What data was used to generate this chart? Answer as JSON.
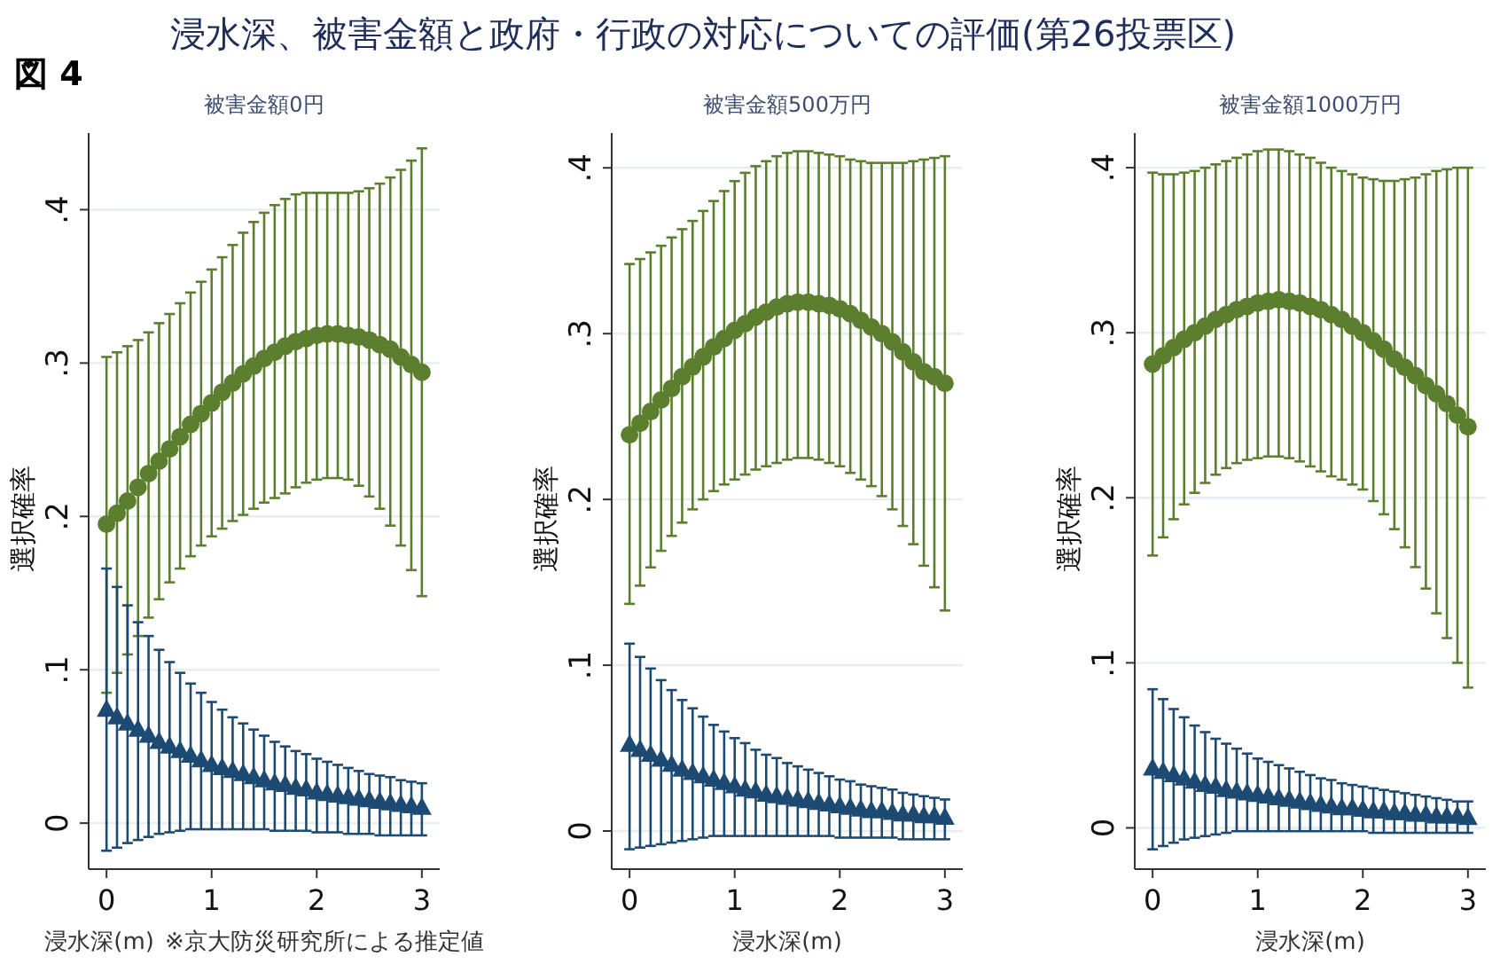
{
  "chart_data": [
    {
      "type": "scatter",
      "title": "浸水深、被害金額と政府・行政の対応についての評価(第26投票区)",
      "subtitle": "被害金額0円",
      "xlabel": "浸水深(m)",
      "ylabel": "選択確率",
      "annotations": [
        "図 4",
        "※京大防災研究所による推定値"
      ],
      "grid": "y",
      "xlim": [
        -0.17,
        3.17
      ],
      "ylim": [
        -0.03,
        0.45
      ],
      "xticks": [
        0,
        1,
        2,
        3
      ],
      "yticks": [
        {
          "value": 0,
          "label": "0"
        },
        {
          "value": 0.1,
          "label": ".1"
        },
        {
          "value": 0.2,
          "label": ".2"
        },
        {
          "value": 0.3,
          "label": ".3"
        },
        {
          "value": 0.4,
          "label": ".4"
        }
      ],
      "x": [
        0,
        0.1,
        0.2,
        0.3,
        0.4,
        0.5,
        0.6,
        0.7,
        0.8,
        0.9,
        1,
        1.1,
        1.2,
        1.3,
        1.4,
        1.5,
        1.6,
        1.7,
        1.8,
        1.9,
        2,
        2.1,
        2.2,
        2.3,
        2.4,
        2.5,
        2.6,
        2.7,
        2.8,
        2.9,
        3
      ],
      "series": [
        {
          "color": "#5b7f2f",
          "marker": "circle",
          "values": [
            0.195,
            0.202,
            0.21,
            0.219,
            0.228,
            0.236,
            0.244,
            0.252,
            0.26,
            0.267,
            0.274,
            0.281,
            0.287,
            0.293,
            0.298,
            0.303,
            0.307,
            0.311,
            0.314,
            0.316,
            0.318,
            0.319,
            0.319,
            0.318,
            0.317,
            0.315,
            0.312,
            0.309,
            0.304,
            0.299,
            0.294
          ],
          "errors": [
            [
              0.085,
              0.304
            ],
            [
              0.098,
              0.307
            ],
            [
              0.11,
              0.311
            ],
            [
              0.122,
              0.315
            ],
            [
              0.134,
              0.32
            ],
            [
              0.146,
              0.326
            ],
            [
              0.157,
              0.332
            ],
            [
              0.166,
              0.339
            ],
            [
              0.174,
              0.346
            ],
            [
              0.181,
              0.353
            ],
            [
              0.187,
              0.361
            ],
            [
              0.192,
              0.369
            ],
            [
              0.197,
              0.377
            ],
            [
              0.201,
              0.385
            ],
            [
              0.205,
              0.392
            ],
            [
              0.209,
              0.398
            ],
            [
              0.212,
              0.403
            ],
            [
              0.215,
              0.407
            ],
            [
              0.219,
              0.41
            ],
            [
              0.222,
              0.411
            ],
            [
              0.224,
              0.411
            ],
            [
              0.225,
              0.411
            ],
            [
              0.225,
              0.411
            ],
            [
              0.224,
              0.411
            ],
            [
              0.22,
              0.412
            ],
            [
              0.213,
              0.414
            ],
            [
              0.205,
              0.417
            ],
            [
              0.194,
              0.421
            ],
            [
              0.181,
              0.426
            ],
            [
              0.165,
              0.432
            ],
            [
              0.148,
              0.44
            ]
          ]
        },
        {
          "color": "#1d4a72",
          "marker": "triangle",
          "values": [
            0.074,
            0.069,
            0.065,
            0.061,
            0.057,
            0.053,
            0.05,
            0.047,
            0.044,
            0.041,
            0.038,
            0.036,
            0.034,
            0.032,
            0.03,
            0.028,
            0.026,
            0.025,
            0.023,
            0.022,
            0.02,
            0.019,
            0.018,
            0.017,
            0.016,
            0.015,
            0.014,
            0.013,
            0.012,
            0.011,
            0.01
          ],
          "errors": [
            [
              -0.018,
              0.166
            ],
            [
              -0.016,
              0.154
            ],
            [
              -0.013,
              0.142
            ],
            [
              -0.011,
              0.131
            ],
            [
              -0.009,
              0.122
            ],
            [
              -0.007,
              0.113
            ],
            [
              -0.006,
              0.105
            ],
            [
              -0.005,
              0.098
            ],
            [
              -0.004,
              0.091
            ],
            [
              -0.004,
              0.085
            ],
            [
              -0.004,
              0.079
            ],
            [
              -0.004,
              0.074
            ],
            [
              -0.004,
              0.069
            ],
            [
              -0.004,
              0.065
            ],
            [
              -0.004,
              0.061
            ],
            [
              -0.004,
              0.057
            ],
            [
              -0.005,
              0.053
            ],
            [
              -0.005,
              0.05
            ],
            [
              -0.005,
              0.047
            ],
            [
              -0.005,
              0.045
            ],
            [
              -0.006,
              0.042
            ],
            [
              -0.006,
              0.04
            ],
            [
              -0.006,
              0.038
            ],
            [
              -0.007,
              0.036
            ],
            [
              -0.007,
              0.034
            ],
            [
              -0.007,
              0.032
            ],
            [
              -0.008,
              0.031
            ],
            [
              -0.008,
              0.03
            ],
            [
              -0.008,
              0.028
            ],
            [
              -0.008,
              0.027
            ],
            [
              -0.008,
              0.026
            ]
          ]
        }
      ]
    },
    {
      "type": "scatter",
      "subtitle": "被害金額500万円",
      "xlabel": "浸水深(m)",
      "ylabel": "選択確率",
      "grid": "y",
      "xlim": [
        -0.17,
        3.17
      ],
      "ylim": [
        -0.023,
        0.421
      ],
      "xticks": [
        0,
        1,
        2,
        3
      ],
      "yticks": [
        {
          "value": 0,
          "label": "0"
        },
        {
          "value": 0.1,
          "label": ".1"
        },
        {
          "value": 0.2,
          "label": ".2"
        },
        {
          "value": 0.3,
          "label": ".3"
        },
        {
          "value": 0.4,
          "label": ".4"
        }
      ],
      "x": [
        0,
        0.1,
        0.2,
        0.3,
        0.4,
        0.5,
        0.6,
        0.7,
        0.8,
        0.9,
        1,
        1.1,
        1.2,
        1.3,
        1.4,
        1.5,
        1.6,
        1.7,
        1.8,
        1.9,
        2,
        2.1,
        2.2,
        2.3,
        2.4,
        2.5,
        2.6,
        2.7,
        2.8,
        2.9,
        3
      ],
      "series": [
        {
          "color": "#5b7f2f",
          "marker": "circle",
          "values": [
            0.239,
            0.246,
            0.253,
            0.26,
            0.267,
            0.274,
            0.28,
            0.286,
            0.292,
            0.297,
            0.302,
            0.306,
            0.31,
            0.313,
            0.316,
            0.318,
            0.319,
            0.319,
            0.318,
            0.317,
            0.315,
            0.312,
            0.308,
            0.304,
            0.3,
            0.295,
            0.289,
            0.283,
            0.277,
            0.274,
            0.27
          ],
          "errors": [
            [
              0.137,
              0.342
            ],
            [
              0.148,
              0.345
            ],
            [
              0.159,
              0.349
            ],
            [
              0.169,
              0.353
            ],
            [
              0.178,
              0.358
            ],
            [
              0.186,
              0.363
            ],
            [
              0.194,
              0.368
            ],
            [
              0.2,
              0.374
            ],
            [
              0.205,
              0.38
            ],
            [
              0.209,
              0.386
            ],
            [
              0.212,
              0.392
            ],
            [
              0.215,
              0.397
            ],
            [
              0.218,
              0.401
            ],
            [
              0.22,
              0.404
            ],
            [
              0.222,
              0.407
            ],
            [
              0.224,
              0.409
            ],
            [
              0.225,
              0.41
            ],
            [
              0.225,
              0.41
            ],
            [
              0.224,
              0.409
            ],
            [
              0.222,
              0.408
            ],
            [
              0.22,
              0.407
            ],
            [
              0.216,
              0.405
            ],
            [
              0.212,
              0.404
            ],
            [
              0.208,
              0.403
            ],
            [
              0.202,
              0.403
            ],
            [
              0.194,
              0.403
            ],
            [
              0.184,
              0.403
            ],
            [
              0.173,
              0.404
            ],
            [
              0.16,
              0.405
            ],
            [
              0.147,
              0.406
            ],
            [
              0.133,
              0.407
            ]
          ]
        },
        {
          "color": "#1d4a72",
          "marker": "triangle",
          "values": [
            0.052,
            0.049,
            0.046,
            0.043,
            0.04,
            0.037,
            0.035,
            0.033,
            0.031,
            0.029,
            0.027,
            0.025,
            0.024,
            0.022,
            0.021,
            0.02,
            0.019,
            0.018,
            0.017,
            0.016,
            0.015,
            0.014,
            0.013,
            0.012,
            0.012,
            0.011,
            0.01,
            0.01,
            0.009,
            0.009,
            0.008
          ],
          "errors": [
            [
              -0.011,
              0.113
            ],
            [
              -0.01,
              0.105
            ],
            [
              -0.009,
              0.098
            ],
            [
              -0.008,
              0.091
            ],
            [
              -0.007,
              0.085
            ],
            [
              -0.006,
              0.079
            ],
            [
              -0.005,
              0.074
            ],
            [
              -0.004,
              0.069
            ],
            [
              -0.003,
              0.064
            ],
            [
              -0.003,
              0.06
            ],
            [
              -0.003,
              0.056
            ],
            [
              -0.003,
              0.053
            ],
            [
              -0.003,
              0.049
            ],
            [
              -0.003,
              0.046
            ],
            [
              -0.003,
              0.044
            ],
            [
              -0.003,
              0.041
            ],
            [
              -0.003,
              0.039
            ],
            [
              -0.003,
              0.037
            ],
            [
              -0.003,
              0.035
            ],
            [
              -0.003,
              0.033
            ],
            [
              -0.004,
              0.031
            ],
            [
              -0.004,
              0.03
            ],
            [
              -0.004,
              0.028
            ],
            [
              -0.004,
              0.027
            ],
            [
              -0.004,
              0.026
            ],
            [
              -0.004,
              0.025
            ],
            [
              -0.005,
              0.023
            ],
            [
              -0.005,
              0.022
            ],
            [
              -0.005,
              0.021
            ],
            [
              -0.005,
              0.02
            ],
            [
              -0.005,
              0.019
            ]
          ]
        }
      ]
    },
    {
      "type": "scatter",
      "subtitle": "被害金額1000万円",
      "xlabel": "浸水深(m)",
      "ylabel": "選択確率",
      "grid": "y",
      "xlim": [
        -0.17,
        3.17
      ],
      "ylim": [
        -0.025,
        0.421
      ],
      "xticks": [
        0,
        1,
        2,
        3
      ],
      "yticks": [
        {
          "value": 0,
          "label": "0"
        },
        {
          "value": 0.1,
          "label": ".1"
        },
        {
          "value": 0.2,
          "label": ".2"
        },
        {
          "value": 0.3,
          "label": ".3"
        },
        {
          "value": 0.4,
          "label": ".4"
        }
      ],
      "x": [
        0,
        0.1,
        0.2,
        0.3,
        0.4,
        0.5,
        0.6,
        0.7,
        0.8,
        0.9,
        1,
        1.1,
        1.2,
        1.3,
        1.4,
        1.5,
        1.6,
        1.7,
        1.8,
        1.9,
        2,
        2.1,
        2.2,
        2.3,
        2.4,
        2.5,
        2.6,
        2.7,
        2.8,
        2.9,
        3
      ],
      "series": [
        {
          "color": "#5b7f2f",
          "marker": "circle",
          "values": [
            0.281,
            0.286,
            0.291,
            0.296,
            0.3,
            0.304,
            0.308,
            0.311,
            0.314,
            0.316,
            0.318,
            0.319,
            0.32,
            0.319,
            0.318,
            0.316,
            0.314,
            0.311,
            0.308,
            0.304,
            0.3,
            0.295,
            0.29,
            0.284,
            0.279,
            0.274,
            0.268,
            0.263,
            0.257,
            0.25,
            0.243
          ],
          "errors": [
            [
              0.165,
              0.397
            ],
            [
              0.176,
              0.396
            ],
            [
              0.187,
              0.396
            ],
            [
              0.196,
              0.397
            ],
            [
              0.203,
              0.398
            ],
            [
              0.209,
              0.4
            ],
            [
              0.214,
              0.402
            ],
            [
              0.218,
              0.404
            ],
            [
              0.221,
              0.406
            ],
            [
              0.223,
              0.408
            ],
            [
              0.224,
              0.41
            ],
            [
              0.225,
              0.411
            ],
            [
              0.225,
              0.411
            ],
            [
              0.224,
              0.41
            ],
            [
              0.222,
              0.408
            ],
            [
              0.219,
              0.406
            ],
            [
              0.216,
              0.403
            ],
            [
              0.213,
              0.4
            ],
            [
              0.211,
              0.398
            ],
            [
              0.208,
              0.396
            ],
            [
              0.205,
              0.394
            ],
            [
              0.198,
              0.393
            ],
            [
              0.19,
              0.392
            ],
            [
              0.181,
              0.392
            ],
            [
              0.17,
              0.393
            ],
            [
              0.158,
              0.394
            ],
            [
              0.145,
              0.396
            ],
            [
              0.13,
              0.398
            ],
            [
              0.115,
              0.399
            ],
            [
              0.1,
              0.4
            ],
            [
              0.085,
              0.4
            ]
          ]
        },
        {
          "color": "#1d4a72",
          "marker": "triangle",
          "values": [
            0.036,
            0.034,
            0.032,
            0.03,
            0.028,
            0.026,
            0.025,
            0.023,
            0.022,
            0.021,
            0.02,
            0.019,
            0.018,
            0.017,
            0.016,
            0.015,
            0.014,
            0.013,
            0.012,
            0.012,
            0.011,
            0.01,
            0.01,
            0.009,
            0.009,
            0.008,
            0.008,
            0.007,
            0.007,
            0.007,
            0.006
          ],
          "errors": [
            [
              -0.013,
              0.084
            ],
            [
              -0.011,
              0.078
            ],
            [
              -0.009,
              0.072
            ],
            [
              -0.007,
              0.067
            ],
            [
              -0.006,
              0.062
            ],
            [
              -0.005,
              0.058
            ],
            [
              -0.004,
              0.054
            ],
            [
              -0.003,
              0.051
            ],
            [
              -0.002,
              0.048
            ],
            [
              -0.002,
              0.045
            ],
            [
              -0.002,
              0.042
            ],
            [
              -0.002,
              0.04
            ],
            [
              -0.002,
              0.038
            ],
            [
              -0.002,
              0.036
            ],
            [
              -0.002,
              0.034
            ],
            [
              -0.002,
              0.032
            ],
            [
              -0.002,
              0.03
            ],
            [
              -0.002,
              0.029
            ],
            [
              -0.002,
              0.027
            ],
            [
              -0.002,
              0.026
            ],
            [
              -0.002,
              0.025
            ],
            [
              -0.003,
              0.024
            ],
            [
              -0.003,
              0.023
            ],
            [
              -0.003,
              0.022
            ],
            [
              -0.003,
              0.021
            ],
            [
              -0.003,
              0.02
            ],
            [
              -0.003,
              0.019
            ],
            [
              -0.003,
              0.018
            ],
            [
              -0.003,
              0.017
            ],
            [
              -0.003,
              0.016
            ],
            [
              -0.003,
              0.016
            ]
          ]
        }
      ]
    }
  ]
}
